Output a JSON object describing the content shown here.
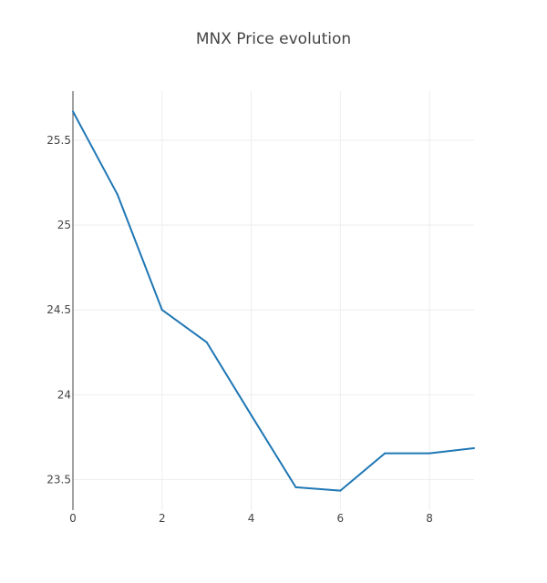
{
  "chart_data": {
    "type": "line",
    "title": "MNX Price evolution",
    "xlabel": "",
    "ylabel": "",
    "x": [
      0,
      1,
      2,
      3,
      4,
      5,
      6,
      7,
      8,
      9
    ],
    "series": [
      {
        "values": [
          25.67,
          25.18,
          24.5,
          24.31,
          23.88,
          23.455,
          23.435,
          23.655,
          23.655,
          23.685
        ]
      }
    ],
    "xlim": [
      0,
      9
    ],
    "ylim": [
      23.32,
      25.79
    ],
    "xticks": [
      "0",
      "2",
      "4",
      "6",
      "8"
    ],
    "yticks": [
      "23.5",
      "24",
      "24.5",
      "25",
      "25.5"
    ],
    "grid": true,
    "legend": "none",
    "colors": {
      "line": "#1f77b4",
      "grid": "#eeeeee",
      "axis": "#444444",
      "text": "#444444"
    }
  }
}
